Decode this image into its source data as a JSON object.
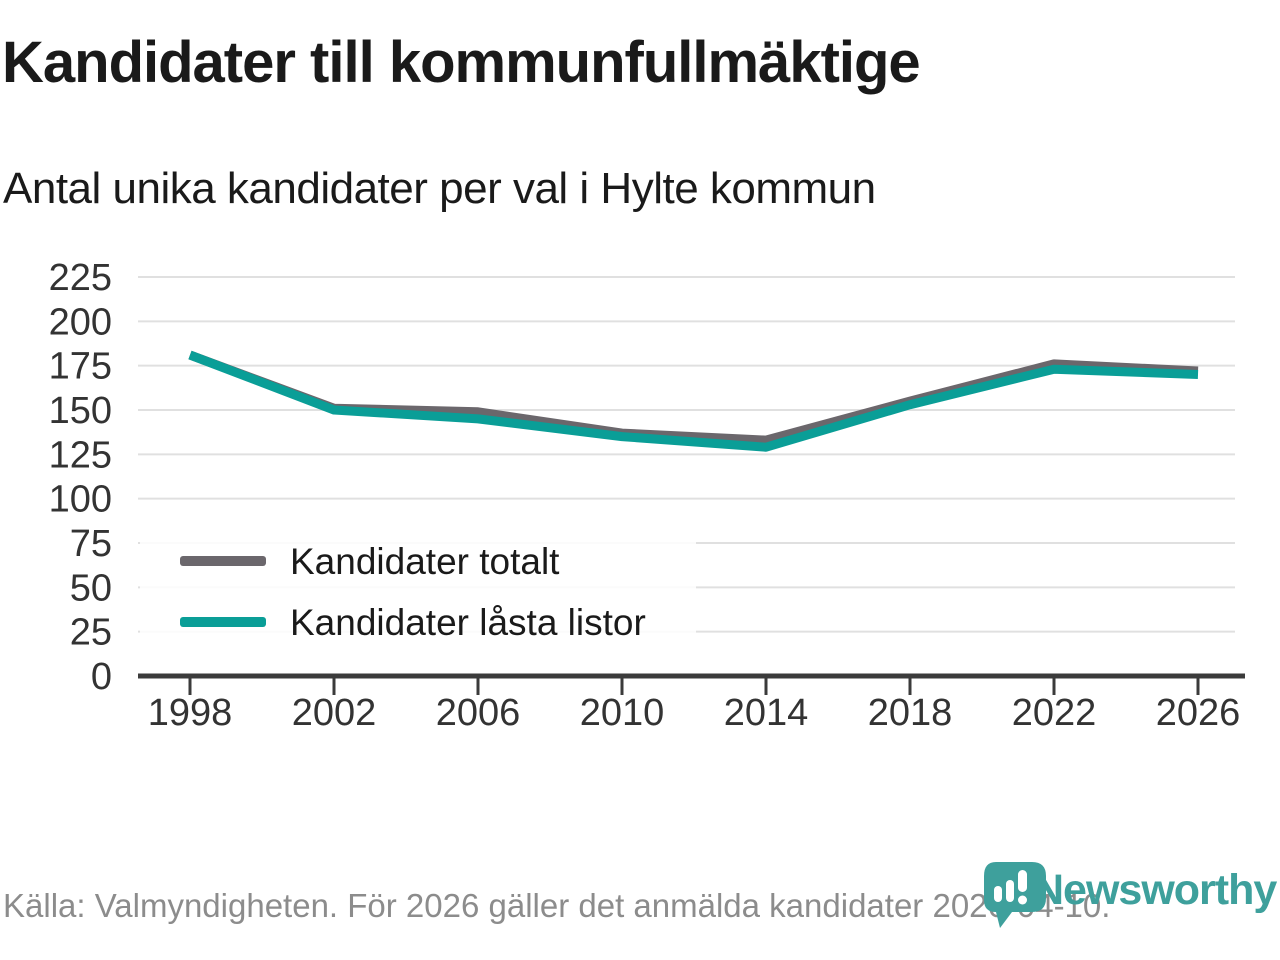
{
  "header": {
    "title": "Kandidater till kommunfullmäktige",
    "subtitle": "Antal unika kandidater per val i Hylte kommun"
  },
  "chart_data": {
    "type": "line",
    "x": [
      1998,
      2002,
      2006,
      2010,
      2014,
      2018,
      2022,
      2026
    ],
    "xtick_labels": [
      "1998",
      "2002",
      "2006",
      "2010",
      "2014",
      "2018",
      "2022",
      "2026"
    ],
    "series": [
      {
        "name": "Kandidater totalt",
        "color": "#6b676c",
        "values": [
          181,
          151,
          149,
          137,
          133,
          155,
          176,
          172
        ]
      },
      {
        "name": "Kandidater låsta listor",
        "color": "#0a9e97",
        "values": [
          181,
          150,
          145,
          135,
          129,
          153,
          173,
          170
        ]
      }
    ],
    "ylim": [
      0,
      225
    ],
    "ytick_step": 25,
    "ytick_labels": [
      "0",
      "25",
      "50",
      "75",
      "100",
      "125",
      "150",
      "175",
      "200",
      "225"
    ],
    "grid": true,
    "legend_position": "inside-left",
    "title": "Kandidater till kommunfullmäktige",
    "subtitle": "Antal unika kandidater per val i Hylte kommun",
    "xlabel": "",
    "ylabel": ""
  },
  "footer": {
    "source": "Källa: Valmyndigheten. För 2026 gäller det anmälda kandidater 2026-04-10.",
    "brand": "Newsworthy"
  },
  "colors": {
    "series_total": "#6b676c",
    "series_locked": "#0a9e97",
    "gridline": "#e0e0e0",
    "axis": "#3b3b3b",
    "tick_label": "#333333",
    "text": "#1a1a1a",
    "footer_text": "#8c8c8c",
    "brand_teal": "#3ea09c"
  }
}
